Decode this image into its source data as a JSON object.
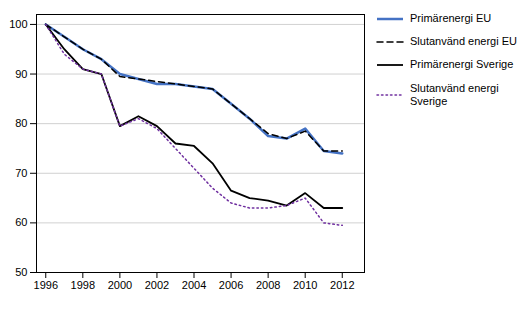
{
  "chart_data": {
    "type": "line",
    "x": [
      1996,
      1997,
      1998,
      1999,
      2000,
      2001,
      2002,
      2003,
      2004,
      2005,
      2006,
      2007,
      2008,
      2009,
      2010,
      2011,
      2012
    ],
    "series": [
      {
        "name": "Primärenergi EU",
        "color": "#4472C4",
        "line_style": "solid",
        "values": [
          100,
          97.5,
          95,
          93,
          90,
          89,
          88,
          88,
          87.5,
          87,
          84,
          81,
          77.5,
          77,
          79,
          74.5,
          74
        ]
      },
      {
        "name": "Slutanvänd energi EU",
        "color": "#000000",
        "line_style": "dashed",
        "values": [
          100,
          97.5,
          95,
          93,
          89.5,
          89,
          88.5,
          88,
          87.5,
          87,
          84,
          81,
          78,
          77,
          78.5,
          74.5,
          74.5
        ]
      },
      {
        "name": "Primärenergi Sverige",
        "color": "#000000",
        "line_style": "solid",
        "values": [
          100,
          95,
          91,
          90,
          79.5,
          81.5,
          79.5,
          76,
          75.5,
          72,
          66.5,
          65,
          64.5,
          63.5,
          66,
          63,
          63
        ]
      },
      {
        "name": "Slutanvänd energi\nSverige",
        "color": "#7030A0",
        "line_style": "dotted",
        "values": [
          100,
          94,
          91,
          90,
          79.5,
          81,
          79,
          75,
          71,
          67,
          64,
          63,
          63,
          63.5,
          65,
          60,
          59.5
        ]
      }
    ],
    "xlim": [
      1995.5,
      2013.2
    ],
    "xticks": [
      1996,
      1998,
      2000,
      2002,
      2004,
      2006,
      2008,
      2010,
      2012
    ],
    "ylim": [
      50,
      102
    ],
    "yticks": [
      50,
      60,
      70,
      80,
      90,
      100
    ],
    "grid": "y",
    "legend": "right"
  }
}
